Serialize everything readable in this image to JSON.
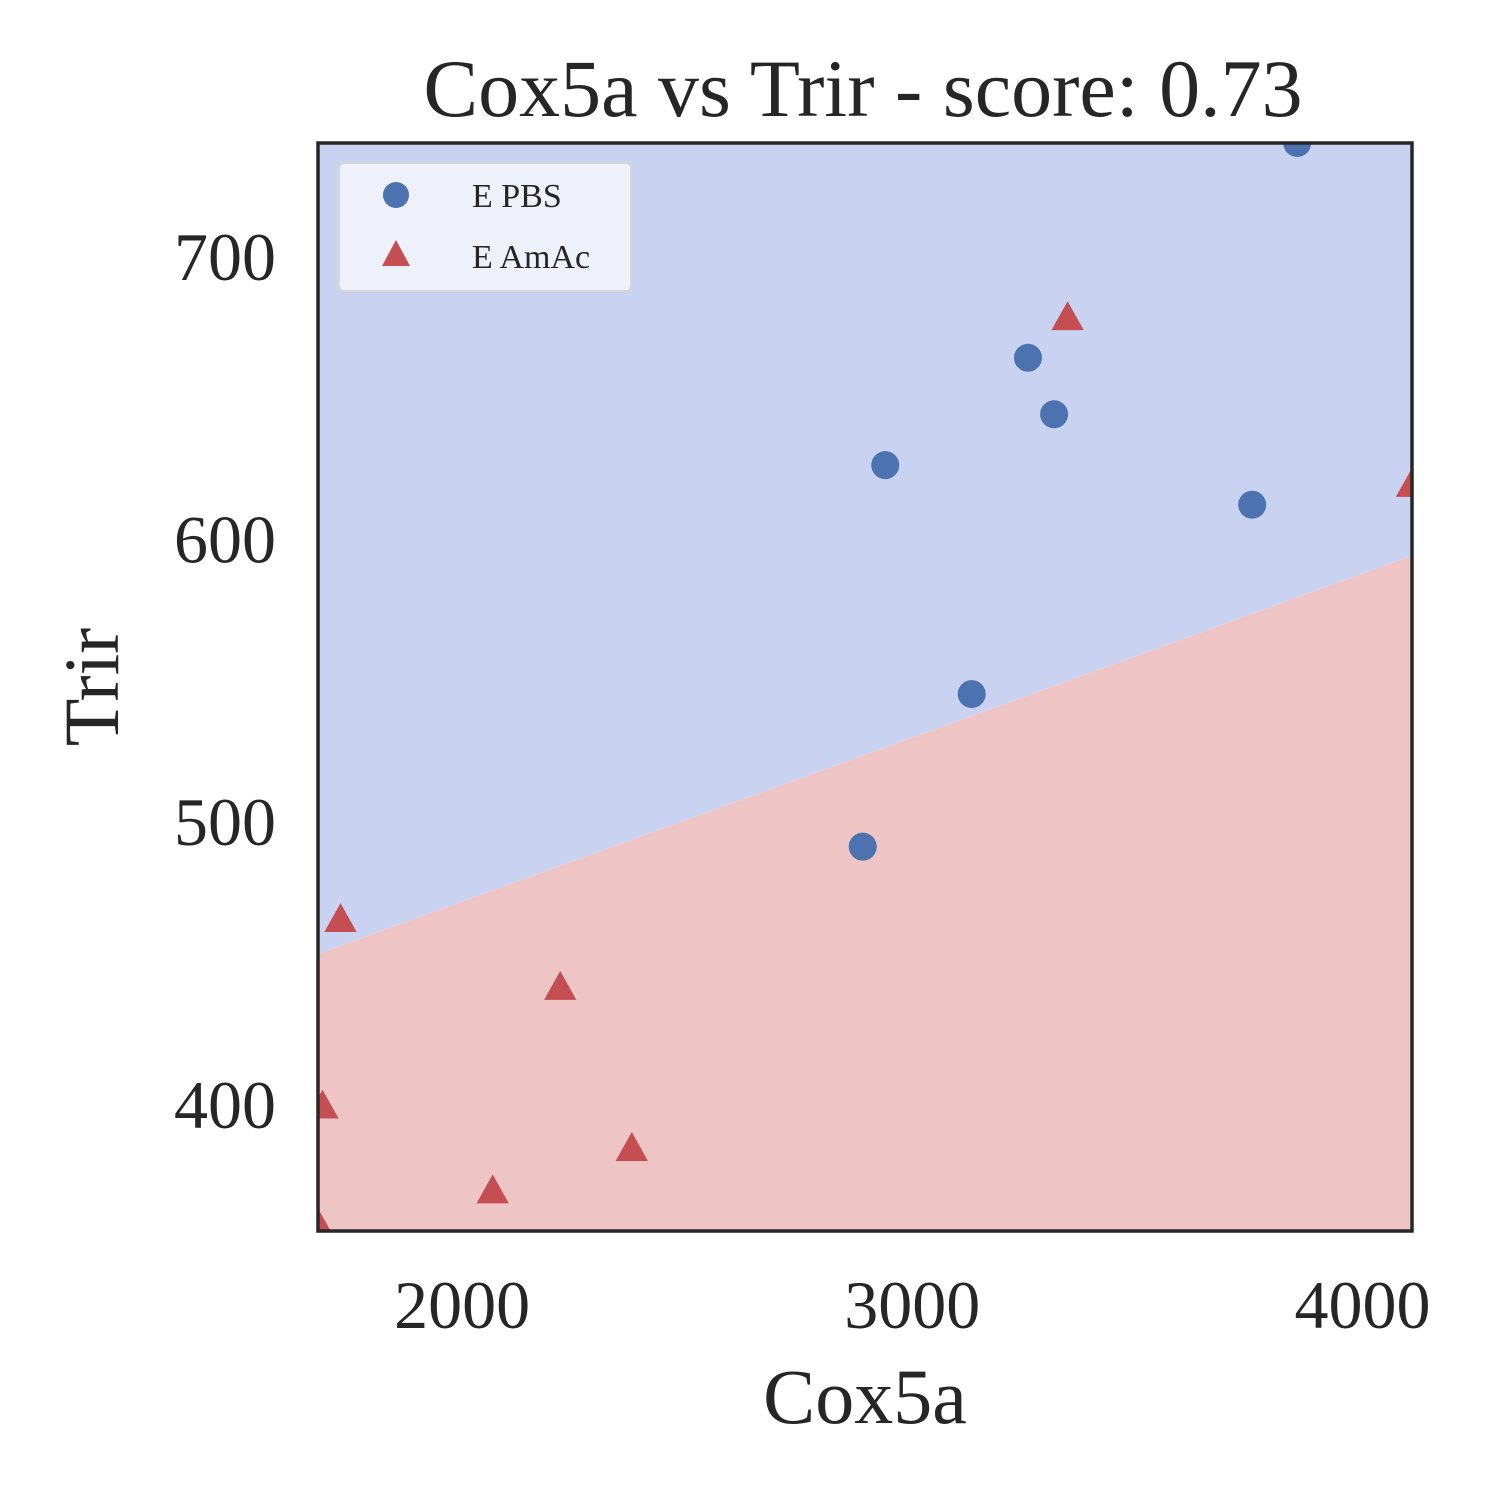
{
  "chart_data": {
    "type": "scatter",
    "title": "Cox5a vs Trir - score: 0.73",
    "xlabel": "Cox5a",
    "ylabel": "Trir",
    "xlim": [
      1680,
      4110
    ],
    "ylim": [
      355,
      740
    ],
    "xticks": [
      2000,
      3000,
      4000
    ],
    "yticks": [
      400,
      500,
      600,
      700
    ],
    "grid": false,
    "legend_position": "top-left",
    "decision_boundary": {
      "points": [
        [
          1680,
          453
        ],
        [
          4110,
          594
        ]
      ],
      "above_color": "#c9d2f1",
      "below_color": "#eec4c4",
      "above_class": "E PBS",
      "below_class": "E AmAc"
    },
    "series": [
      {
        "name": "E PBS",
        "marker": "circle",
        "color": "#4c72b0",
        "points": [
          [
            3855,
            740
          ],
          [
            3257,
            664
          ],
          [
            3315,
            644
          ],
          [
            2940,
            626
          ],
          [
            3755,
            612
          ],
          [
            3132,
            545
          ],
          [
            2890,
            491
          ]
        ]
      },
      {
        "name": "E AmAc",
        "marker": "triangle",
        "color": "#c44e52",
        "points": [
          [
            3345,
            678
          ],
          [
            4110,
            619
          ],
          [
            1730,
            465
          ],
          [
            2218,
            441
          ],
          [
            1690,
            399
          ],
          [
            2377,
            384
          ],
          [
            2068,
            369
          ],
          [
            1680,
            357
          ]
        ]
      }
    ]
  }
}
